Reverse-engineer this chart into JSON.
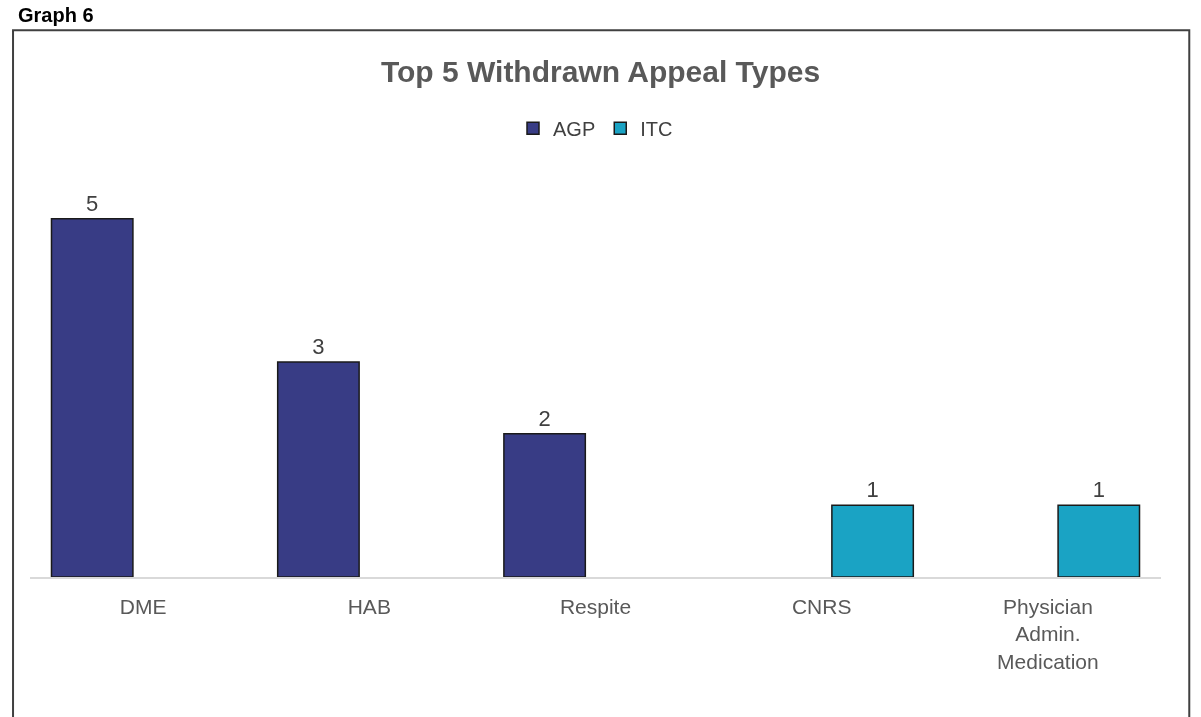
{
  "chart_data": {
    "type": "bar",
    "title": "Top 5 Withdrawn Appeal Types",
    "categories": [
      "DME",
      "HAB",
      "Respite",
      "CNRS",
      "Physician Admin. Medication"
    ],
    "series": [
      {
        "name": "AGP",
        "color": "#383c85",
        "values": [
          5,
          3,
          2,
          null,
          null
        ]
      },
      {
        "name": "ITC",
        "color": "#1aa3c4",
        "values": [
          null,
          null,
          null,
          1,
          1
        ]
      }
    ],
    "data_labels": true,
    "legend": "top",
    "annotations": [
      "Graph 6"
    ]
  }
}
